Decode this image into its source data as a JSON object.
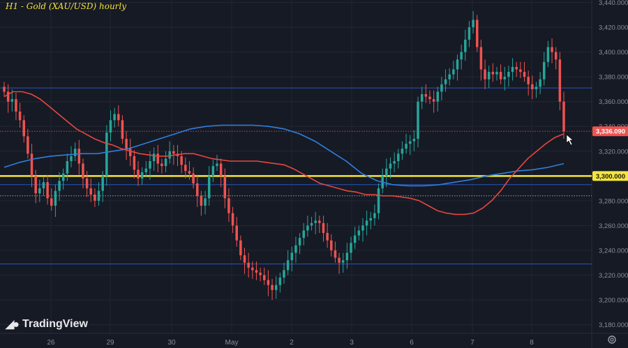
{
  "title": "H1 - Gold (XAU/USD) hourly",
  "logo": {
    "text": "TradingView"
  },
  "colors": {
    "bg": "#161a25",
    "grid": "#232733",
    "axis_text": "#8b8f99",
    "up": "#26a69a",
    "down": "#ef5350",
    "ma_fast": "#e8463e",
    "ma_slow": "#2f7fdc",
    "support": "#f5e63b",
    "hline": "#2656b8",
    "price_dot": "#c14a4a"
  },
  "chart_data": {
    "type": "candlestick",
    "title": "H1 - Gold (XAU/USD) hourly",
    "x_ticks": [
      "26",
      "29",
      "30",
      "May",
      "2",
      "3",
      "6",
      "7",
      "8"
    ],
    "y_ticks": [
      "3,180.000",
      "3,200.000",
      "3,220.000",
      "3,240.000",
      "3,260.000",
      "3,280.000",
      "3,300.000",
      "3,320.000",
      "3,340.000",
      "3,360.000",
      "3,380.000",
      "3,400.000",
      "3,420.000",
      "3,440.000"
    ],
    "ylim": [
      3173,
      3442
    ],
    "grid": true,
    "price_labels": [
      {
        "text": "3,336.090",
        "value": 3336.09,
        "color": "#ef5350"
      },
      {
        "text": "3,300.000",
        "value": 3300,
        "color": "#f5e63b"
      }
    ],
    "horizontal_lines": [
      {
        "value": 3371,
        "style": "solid",
        "color": "#2656b8"
      },
      {
        "value": 3300,
        "style": "thick",
        "color": "#f5e63b"
      },
      {
        "value": 3293,
        "style": "solid",
        "color": "#2656b8"
      },
      {
        "value": 3284,
        "style": "dotted",
        "color": "#9aa0aa"
      },
      {
        "value": 3229,
        "style": "solid",
        "color": "#2656b8"
      },
      {
        "value": 3336.09,
        "style": "dotted",
        "color": "#c14a4a"
      }
    ],
    "closes": [
      3368,
      3360,
      3362,
      3352,
      3345,
      3332,
      3318,
      3300,
      3286,
      3290,
      3295,
      3282,
      3276,
      3288,
      3296,
      3302,
      3312,
      3316,
      3322,
      3310,
      3298,
      3290,
      3285,
      3280,
      3288,
      3300,
      3335,
      3345,
      3350,
      3345,
      3330,
      3322,
      3316,
      3305,
      3298,
      3303,
      3306,
      3312,
      3318,
      3310,
      3308,
      3314,
      3320,
      3318,
      3316,
      3309,
      3304,
      3302,
      3294,
      3284,
      3276,
      3282,
      3300,
      3308,
      3310,
      3300,
      3282,
      3270,
      3260,
      3248,
      3236,
      3230,
      3226,
      3224,
      3222,
      3220,
      3216,
      3212,
      3208,
      3212,
      3218,
      3224,
      3232,
      3238,
      3244,
      3250,
      3256,
      3260,
      3262,
      3264,
      3262,
      3254,
      3248,
      3240,
      3234,
      3230,
      3232,
      3238,
      3246,
      3252,
      3256,
      3260,
      3264,
      3266,
      3270,
      3290,
      3300,
      3306,
      3310,
      3312,
      3318,
      3322,
      3326,
      3328,
      3330,
      3360,
      3366,
      3364,
      3362,
      3360,
      3368,
      3374,
      3378,
      3382,
      3386,
      3394,
      3400,
      3410,
      3420,
      3426,
      3404,
      3386,
      3378,
      3384,
      3382,
      3384,
      3378,
      3380,
      3384,
      3388,
      3386,
      3384,
      3380,
      3374,
      3370,
      3372,
      3378,
      3392,
      3404,
      3400,
      3394,
      3360,
      3336
    ],
    "ma_fast": [
      3364,
      3368,
      3368,
      3366,
      3362,
      3356,
      3350,
      3344,
      3338,
      3334,
      3330,
      3327,
      3325,
      3322,
      3320,
      3318,
      3317,
      3316,
      3316,
      3317,
      3318,
      3318,
      3316,
      3314,
      3313,
      3312,
      3312,
      3312,
      3312,
      3311,
      3310,
      3309,
      3306,
      3302,
      3298,
      3294,
      3292,
      3290,
      3288,
      3287,
      3285,
      3285,
      3284,
      3284,
      3283,
      3282,
      3280,
      3276,
      3272,
      3270,
      3269,
      3269,
      3270,
      3274,
      3280,
      3288,
      3298,
      3306,
      3314,
      3320,
      3326,
      3331,
      3334
    ],
    "ma_slow": [
      3307,
      3311,
      3314,
      3316,
      3317,
      3318,
      3318,
      3320,
      3322,
      3326,
      3330,
      3334,
      3338,
      3340,
      3341,
      3341,
      3341,
      3340,
      3338,
      3334,
      3328,
      3320,
      3312,
      3302,
      3296,
      3293,
      3292,
      3292,
      3293,
      3295,
      3297,
      3300,
      3302,
      3304,
      3305,
      3307,
      3310
    ]
  }
}
